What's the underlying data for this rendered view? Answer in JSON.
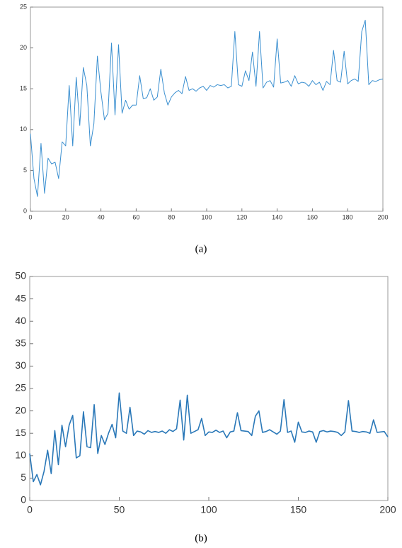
{
  "chart_data": [
    {
      "type": "line",
      "caption": "(a)",
      "x": [
        0,
        2,
        4,
        6,
        8,
        10,
        12,
        14,
        16,
        18,
        20,
        22,
        24,
        26,
        28,
        30,
        32,
        34,
        36,
        38,
        40,
        42,
        44,
        46,
        48,
        50,
        52,
        54,
        56,
        58,
        60,
        62,
        64,
        66,
        68,
        70,
        72,
        74,
        76,
        78,
        80,
        82,
        84,
        86,
        88,
        90,
        92,
        94,
        96,
        98,
        100,
        102,
        104,
        106,
        108,
        110,
        112,
        114,
        116,
        118,
        120,
        122,
        124,
        126,
        128,
        130,
        132,
        134,
        136,
        138,
        140,
        142,
        144,
        146,
        148,
        150,
        152,
        154,
        156,
        158,
        160,
        162,
        164,
        166,
        168,
        170,
        172,
        174,
        176,
        178,
        180,
        182,
        184,
        186,
        188,
        190,
        192,
        194,
        196,
        198,
        200
      ],
      "series": [
        {
          "name": null,
          "color": "#3a8fd0",
          "values": [
            9.5,
            4,
            1.8,
            8.3,
            2.2,
            6.5,
            5.8,
            6,
            4,
            8.5,
            8,
            15.4,
            8,
            16.4,
            10.5,
            17.6,
            15.4,
            8,
            10.7,
            19,
            14.6,
            11.2,
            12,
            20.6,
            11.8,
            20.4,
            12,
            13.6,
            12.5,
            13,
            13,
            16.6,
            13.8,
            13.9,
            15,
            13.6,
            14,
            17.4,
            14.5,
            13,
            14,
            14.5,
            14.8,
            14.4,
            16.5,
            14.8,
            15,
            14.7,
            15.1,
            15.3,
            14.8,
            15.4,
            15.2,
            15.5,
            15.4,
            15.5,
            15.1,
            15.3,
            22,
            15.5,
            15.3,
            17.2,
            16,
            19.5,
            15.3,
            22,
            15.1,
            15.8,
            16,
            15.2,
            21.1,
            15.7,
            15.8,
            16,
            15.3,
            16.6,
            15.6,
            15.8,
            15.7,
            15.3,
            16,
            15.5,
            15.8,
            14.8,
            15.9,
            15.5,
            19.7,
            16,
            15.8,
            19.6,
            15.6,
            16,
            16.2,
            15.9,
            22,
            23.4,
            15.5,
            16,
            15.9,
            16.1,
            16.2
          ]
        }
      ],
      "xlim": [
        0,
        200
      ],
      "xticks": [
        0,
        20,
        40,
        60,
        80,
        100,
        120,
        140,
        160,
        180,
        200
      ],
      "ylim": [
        0,
        25
      ],
      "yticks": [
        0,
        5,
        10,
        15,
        20,
        25
      ]
    },
    {
      "type": "line",
      "caption": "(b)",
      "x": [
        0,
        2,
        4,
        6,
        8,
        10,
        12,
        14,
        16,
        18,
        20,
        22,
        24,
        26,
        28,
        30,
        32,
        34,
        36,
        38,
        40,
        42,
        44,
        46,
        48,
        50,
        52,
        54,
        56,
        58,
        60,
        62,
        64,
        66,
        68,
        70,
        72,
        74,
        76,
        78,
        80,
        82,
        84,
        86,
        88,
        90,
        92,
        94,
        96,
        98,
        100,
        102,
        104,
        106,
        108,
        110,
        112,
        114,
        116,
        118,
        120,
        122,
        124,
        126,
        128,
        130,
        132,
        134,
        136,
        138,
        140,
        142,
        144,
        146,
        148,
        150,
        152,
        154,
        156,
        158,
        160,
        162,
        164,
        166,
        168,
        170,
        172,
        174,
        176,
        178,
        180,
        182,
        184,
        186,
        188,
        190,
        192,
        194,
        196,
        198,
        200
      ],
      "series": [
        {
          "name": null,
          "color": "#2a78b8",
          "values": [
            10.5,
            4.2,
            5.8,
            3.5,
            6.5,
            11.2,
            6,
            15.6,
            8,
            16.8,
            12,
            16.8,
            19,
            9.5,
            10,
            19.8,
            12,
            11.8,
            21.4,
            10.5,
            14.5,
            12.5,
            15,
            17,
            14,
            24,
            15.5,
            15,
            20.8,
            14.5,
            15.5,
            15.3,
            14.8,
            15.6,
            15.2,
            15.4,
            15.2,
            15.5,
            15,
            15.8,
            15.4,
            16,
            22.4,
            13.5,
            23.5,
            15,
            15.4,
            15.8,
            18.3,
            14.5,
            15.3,
            15.2,
            15.7,
            15.2,
            15.5,
            14,
            15.3,
            15.5,
            19.6,
            15.6,
            15.5,
            15.4,
            14.5,
            18.8,
            20,
            15.2,
            15.4,
            15.8,
            15.3,
            14.8,
            15.5,
            22.5,
            15.2,
            15.5,
            13,
            17.5,
            15.3,
            15.2,
            15.5,
            15.3,
            13,
            15.4,
            15.6,
            15.3,
            15.5,
            15.4,
            15.2,
            14.5,
            15.3,
            22.3,
            15.5,
            15.4,
            15.2,
            15.4,
            15.3,
            15,
            18,
            15.2,
            15.3,
            15.4,
            14.2
          ]
        }
      ],
      "xlim": [
        0,
        200
      ],
      "xticks": [
        0,
        50,
        100,
        150,
        200
      ],
      "ylim": [
        0,
        50
      ],
      "yticks": [
        0,
        5,
        10,
        15,
        20,
        25,
        30,
        35,
        40,
        45,
        50
      ]
    }
  ]
}
